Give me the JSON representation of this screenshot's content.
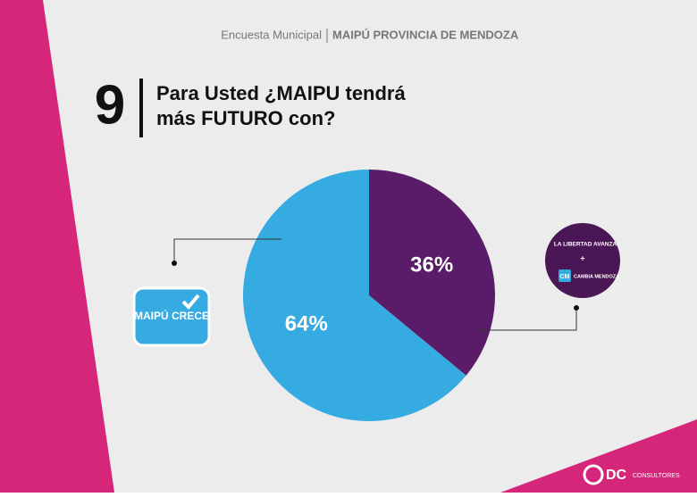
{
  "chart_data": {
    "type": "pie",
    "header": {
      "survey": "Encuesta Municipal",
      "place": "MAIPÚ PROVINCIA DE MENDOZA"
    },
    "question_number": "9",
    "title": [
      "Para Usted ¿MAIPU tendrá",
      "más FUTURO con?"
    ],
    "categories": [
      "LA LIBERTAD AVANZA",
      "MAIPÚ CRECE"
    ],
    "values": [
      36,
      64
    ],
    "value_labels": [
      "36%",
      "64%"
    ],
    "colors": [
      "#5a1b68",
      "#35abe2"
    ],
    "logo_extra": {
      "plus": "+",
      "cm_badge": "CM",
      "cm_name": "CAMBIA MENDOZA"
    },
    "footer": {
      "brand": "DC",
      "sub": "CONSULTORES"
    }
  }
}
